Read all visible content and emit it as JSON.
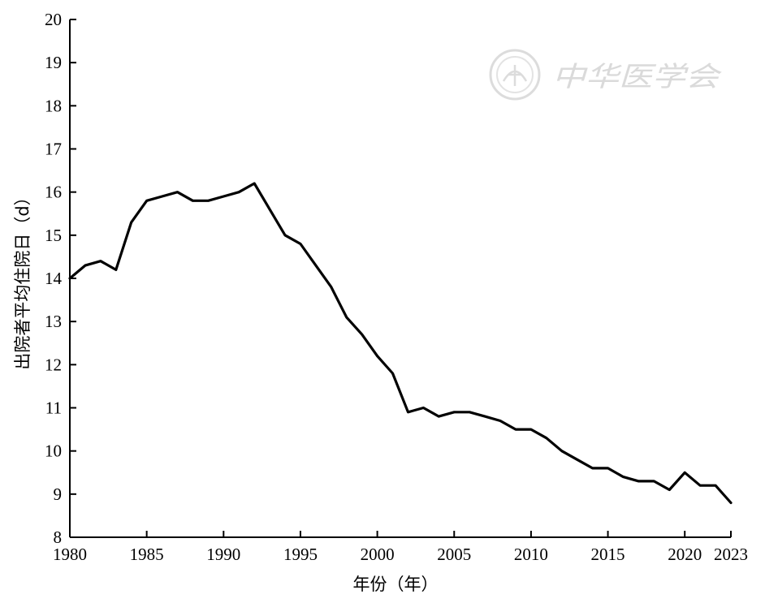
{
  "chart_data": {
    "type": "line",
    "title": "",
    "xlabel": "年份（年）",
    "ylabel": "出院者平均住院日（d）",
    "xlim": [
      1980,
      2023
    ],
    "ylim": [
      8,
      20
    ],
    "x_ticks": [
      1980,
      1985,
      1990,
      1995,
      2000,
      2005,
      2010,
      2015,
      2020,
      2023
    ],
    "x_tick_labels": [
      "1980",
      "1985",
      "1990",
      "1995",
      "2000",
      "2005",
      "2010",
      "2015",
      "2020",
      "2023"
    ],
    "y_ticks": [
      8,
      9,
      10,
      11,
      12,
      13,
      14,
      15,
      16,
      17,
      18,
      19,
      20
    ],
    "y_tick_labels": [
      "8",
      "9",
      "10",
      "11",
      "12",
      "13",
      "14",
      "15",
      "16",
      "17",
      "18",
      "19",
      "20"
    ],
    "grid": false,
    "legend": "none",
    "series": [
      {
        "color": "#000000",
        "x": [
          1980,
          1981,
          1982,
          1983,
          1984,
          1985,
          1986,
          1987,
          1988,
          1989,
          1990,
          1991,
          1992,
          1993,
          1994,
          1995,
          1996,
          1997,
          1998,
          1999,
          2000,
          2001,
          2002,
          2003,
          2004,
          2005,
          2006,
          2007,
          2008,
          2009,
          2010,
          2011,
          2012,
          2013,
          2014,
          2015,
          2016,
          2017,
          2018,
          2019,
          2020,
          2021,
          2022,
          2023
        ],
        "values": [
          14.0,
          14.3,
          14.4,
          14.2,
          15.3,
          15.8,
          15.9,
          16.0,
          15.8,
          15.8,
          15.9,
          16.0,
          16.2,
          15.6,
          15.0,
          14.8,
          14.3,
          13.8,
          13.1,
          12.7,
          12.2,
          11.8,
          10.9,
          11.0,
          10.8,
          10.9,
          10.9,
          10.8,
          10.7,
          10.5,
          10.5,
          10.3,
          10.0,
          9.8,
          9.6,
          9.6,
          9.4,
          9.3,
          9.3,
          9.1,
          9.5,
          9.2,
          9.2,
          8.8
        ]
      }
    ]
  },
  "watermark": {
    "text": "中华医学会",
    "seal_icon": "society-seal-icon"
  }
}
